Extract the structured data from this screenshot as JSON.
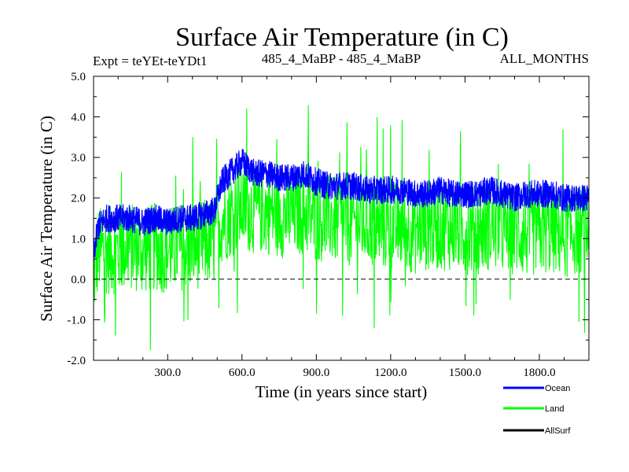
{
  "chart_data": {
    "type": "line",
    "title": "Surface Air Temperature (in C)",
    "subtitle_left": "Expt = teYEt-teYDt1",
    "subtitle_center": "485_4_MaBP - 485_4_MaBP",
    "subtitle_right": "ALL_MONTHS",
    "xlabel": "Time (in years since start)",
    "ylabel": "Surface Air Temperature (in C)",
    "xlim": [
      1,
      2000
    ],
    "ylim": [
      -2.0,
      5.0
    ],
    "xticks": [
      300,
      600,
      900,
      1200,
      1500,
      1800
    ],
    "xtick_labels": [
      "300.0",
      "600.0",
      "900.0",
      "1200.0",
      "1500.0",
      "1800.0"
    ],
    "yticks": [
      -2.0,
      -1.0,
      0.0,
      1.0,
      2.0,
      3.0,
      4.0,
      5.0
    ],
    "ytick_labels": [
      "-2.0",
      "-1.0",
      "0.0",
      "1.0",
      "2.0",
      "3.0",
      "4.0",
      "5.0"
    ],
    "zero_line": 0.0,
    "legend_position": "below-right",
    "series": [
      {
        "name": "Land",
        "color": "#00ff00",
        "x": [
          1,
          20,
          50,
          100,
          150,
          200,
          250,
          300,
          350,
          400,
          450,
          490,
          500,
          520,
          550,
          600,
          650,
          700,
          750,
          800,
          850,
          900,
          950,
          1000,
          1050,
          1100,
          1150,
          1200,
          1250,
          1300,
          1350,
          1400,
          1450,
          1500,
          1550,
          1600,
          1650,
          1700,
          1750,
          1800,
          1850,
          1900,
          1950,
          2000
        ],
        "values": [
          0.0,
          0.7,
          0.7,
          0.7,
          0.8,
          0.7,
          0.8,
          0.7,
          0.8,
          0.8,
          0.9,
          0.9,
          1.2,
          1.5,
          1.6,
          1.8,
          1.7,
          1.7,
          1.6,
          1.6,
          1.7,
          1.5,
          1.5,
          1.4,
          1.4,
          1.4,
          1.3,
          1.3,
          1.3,
          1.2,
          1.3,
          1.3,
          1.3,
          1.2,
          1.2,
          1.3,
          1.2,
          1.2,
          1.1,
          1.2,
          1.2,
          1.1,
          1.2,
          1.2
        ],
        "spread": 1.1,
        "spike_max": 4.4,
        "spike_min": -1.75
      },
      {
        "name": "Ocean",
        "color": "#0000ff",
        "x": [
          1,
          20,
          50,
          100,
          150,
          200,
          250,
          300,
          350,
          400,
          450,
          490,
          500,
          520,
          550,
          600,
          650,
          700,
          750,
          800,
          850,
          900,
          950,
          1000,
          1050,
          1100,
          1150,
          1200,
          1250,
          1300,
          1350,
          1400,
          1450,
          1500,
          1550,
          1600,
          1650,
          1700,
          1750,
          1800,
          1850,
          1900,
          1950,
          2000
        ],
        "values": [
          0.6,
          1.3,
          1.5,
          1.5,
          1.5,
          1.4,
          1.5,
          1.4,
          1.5,
          1.5,
          1.6,
          1.7,
          2.0,
          2.4,
          2.6,
          2.9,
          2.6,
          2.6,
          2.5,
          2.5,
          2.6,
          2.4,
          2.3,
          2.3,
          2.3,
          2.2,
          2.2,
          2.2,
          2.2,
          2.1,
          2.1,
          2.2,
          2.1,
          2.1,
          2.1,
          2.2,
          2.1,
          2.0,
          2.1,
          2.1,
          2.1,
          2.0,
          2.0,
          2.0
        ],
        "spread": 0.35
      },
      {
        "name": "AllSurf",
        "color": "#000000",
        "x": [],
        "values": []
      }
    ]
  }
}
